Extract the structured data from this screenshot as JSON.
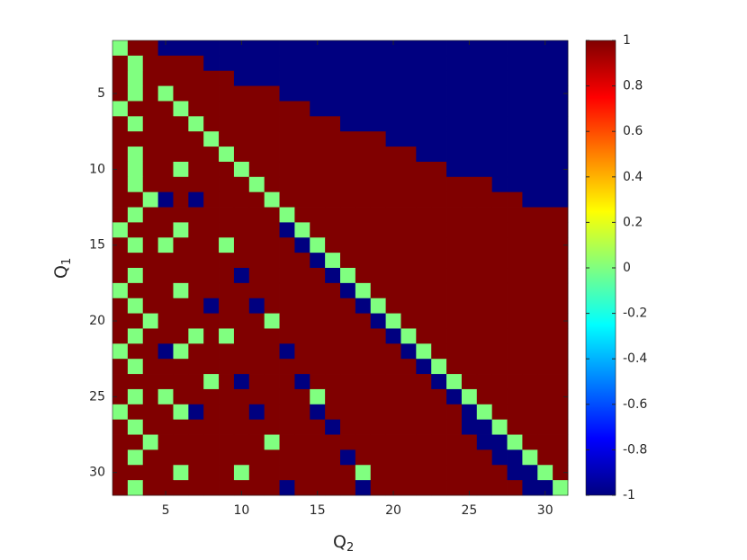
{
  "chart_data": {
    "type": "heatmap",
    "xlabel": [
      "Q",
      "2"
    ],
    "ylabel": [
      "Q",
      "1"
    ],
    "x": [
      2,
      3,
      4,
      5,
      6,
      7,
      8,
      9,
      10,
      11,
      12,
      13,
      14,
      15,
      16,
      17,
      18,
      19,
      20,
      21,
      22,
      23,
      24,
      25,
      26,
      27,
      28,
      29,
      30,
      31
    ],
    "y": [
      2,
      3,
      4,
      5,
      6,
      7,
      8,
      9,
      10,
      11,
      12,
      13,
      14,
      15,
      16,
      17,
      18,
      19,
      20,
      21,
      22,
      23,
      24,
      25,
      26,
      27,
      28,
      29,
      30,
      31
    ],
    "values": [
      [
        0,
        1,
        1,
        -1,
        -1,
        -1,
        -1,
        -1,
        -1,
        -1,
        -1,
        -1,
        -1,
        -1,
        -1,
        -1,
        -1,
        -1,
        -1,
        -1,
        -1,
        -1,
        -1,
        -1,
        -1,
        -1,
        -1,
        -1,
        -1,
        -1
      ],
      [
        1,
        0,
        1,
        1,
        1,
        1,
        -1,
        -1,
        -1,
        -1,
        -1,
        -1,
        -1,
        -1,
        -1,
        -1,
        -1,
        -1,
        -1,
        -1,
        -1,
        -1,
        -1,
        -1,
        -1,
        -1,
        -1,
        -1,
        -1,
        -1
      ],
      [
        1,
        0,
        1,
        1,
        1,
        1,
        1,
        1,
        -1,
        -1,
        -1,
        -1,
        -1,
        -1,
        -1,
        -1,
        -1,
        -1,
        -1,
        -1,
        -1,
        -1,
        -1,
        -1,
        -1,
        -1,
        -1,
        -1,
        -1,
        -1
      ],
      [
        1,
        0,
        1,
        0,
        1,
        1,
        1,
        1,
        1,
        1,
        1,
        -1,
        -1,
        -1,
        -1,
        -1,
        -1,
        -1,
        -1,
        -1,
        -1,
        -1,
        -1,
        -1,
        -1,
        -1,
        -1,
        -1,
        -1,
        -1
      ],
      [
        0,
        1,
        1,
        1,
        0,
        1,
        1,
        1,
        1,
        1,
        1,
        1,
        1,
        -1,
        -1,
        -1,
        -1,
        -1,
        -1,
        -1,
        -1,
        -1,
        -1,
        -1,
        -1,
        -1,
        -1,
        -1,
        -1,
        -1
      ],
      [
        1,
        0,
        1,
        1,
        1,
        0,
        1,
        1,
        1,
        1,
        1,
        1,
        1,
        1,
        1,
        -1,
        -1,
        -1,
        -1,
        -1,
        -1,
        -1,
        -1,
        -1,
        -1,
        -1,
        -1,
        -1,
        -1,
        -1
      ],
      [
        1,
        1,
        1,
        1,
        1,
        1,
        0,
        1,
        1,
        1,
        1,
        1,
        1,
        1,
        1,
        1,
        1,
        1,
        -1,
        -1,
        -1,
        -1,
        -1,
        -1,
        -1,
        -1,
        -1,
        -1,
        -1,
        -1
      ],
      [
        1,
        0,
        1,
        1,
        1,
        1,
        1,
        0,
        1,
        1,
        1,
        1,
        1,
        1,
        1,
        1,
        1,
        1,
        1,
        1,
        -1,
        -1,
        -1,
        -1,
        -1,
        -1,
        -1,
        -1,
        -1,
        -1
      ],
      [
        1,
        0,
        1,
        1,
        0,
        1,
        1,
        1,
        0,
        1,
        1,
        1,
        1,
        1,
        1,
        1,
        1,
        1,
        1,
        1,
        1,
        1,
        -1,
        -1,
        -1,
        -1,
        -1,
        -1,
        -1,
        -1
      ],
      [
        1,
        0,
        1,
        1,
        1,
        1,
        1,
        1,
        1,
        0,
        1,
        1,
        1,
        1,
        1,
        1,
        1,
        1,
        1,
        1,
        1,
        1,
        1,
        1,
        1,
        -1,
        -1,
        -1,
        -1,
        -1
      ],
      [
        1,
        1,
        0,
        -1,
        1,
        -1,
        1,
        1,
        1,
        1,
        0,
        1,
        1,
        1,
        1,
        1,
        1,
        1,
        1,
        1,
        1,
        1,
        1,
        1,
        1,
        1,
        1,
        -1,
        -1,
        -1
      ],
      [
        1,
        0,
        1,
        1,
        1,
        1,
        1,
        1,
        1,
        1,
        1,
        0,
        1,
        1,
        1,
        1,
        1,
        1,
        1,
        1,
        1,
        1,
        1,
        1,
        1,
        1,
        1,
        1,
        1,
        1
      ],
      [
        0,
        1,
        1,
        1,
        0,
        1,
        1,
        1,
        1,
        1,
        1,
        -1,
        0,
        1,
        1,
        1,
        1,
        1,
        1,
        1,
        1,
        1,
        1,
        1,
        1,
        1,
        1,
        1,
        1,
        1
      ],
      [
        1,
        0,
        1,
        0,
        1,
        1,
        1,
        0,
        1,
        1,
        1,
        1,
        -1,
        0,
        1,
        1,
        1,
        1,
        1,
        1,
        1,
        1,
        1,
        1,
        1,
        1,
        1,
        1,
        1,
        1
      ],
      [
        1,
        1,
        1,
        1,
        1,
        1,
        1,
        1,
        1,
        1,
        1,
        1,
        1,
        -1,
        0,
        1,
        1,
        1,
        1,
        1,
        1,
        1,
        1,
        1,
        1,
        1,
        1,
        1,
        1,
        1
      ],
      [
        1,
        0,
        1,
        1,
        1,
        1,
        1,
        1,
        -1,
        1,
        1,
        1,
        1,
        1,
        -1,
        0,
        1,
        1,
        1,
        1,
        1,
        1,
        1,
        1,
        1,
        1,
        1,
        1,
        1,
        1
      ],
      [
        0,
        1,
        1,
        1,
        0,
        1,
        1,
        1,
        1,
        1,
        1,
        1,
        1,
        1,
        1,
        -1,
        0,
        1,
        1,
        1,
        1,
        1,
        1,
        1,
        1,
        1,
        1,
        1,
        1,
        1
      ],
      [
        1,
        0,
        1,
        1,
        1,
        1,
        -1,
        1,
        1,
        -1,
        1,
        1,
        1,
        1,
        1,
        1,
        -1,
        0,
        1,
        1,
        1,
        1,
        1,
        1,
        1,
        1,
        1,
        1,
        1,
        1
      ],
      [
        1,
        1,
        0,
        1,
        1,
        1,
        1,
        1,
        1,
        1,
        0,
        1,
        1,
        1,
        1,
        1,
        1,
        -1,
        0,
        1,
        1,
        1,
        1,
        1,
        1,
        1,
        1,
        1,
        1,
        1
      ],
      [
        1,
        0,
        1,
        1,
        1,
        0,
        1,
        0,
        1,
        1,
        1,
        1,
        1,
        1,
        1,
        1,
        1,
        1,
        -1,
        0,
        1,
        1,
        1,
        1,
        1,
        1,
        1,
        1,
        1,
        1
      ],
      [
        0,
        1,
        1,
        -1,
        0,
        1,
        1,
        1,
        1,
        1,
        1,
        -1,
        1,
        1,
        1,
        1,
        1,
        1,
        1,
        -1,
        0,
        1,
        1,
        1,
        1,
        1,
        1,
        1,
        1,
        1
      ],
      [
        1,
        0,
        1,
        1,
        1,
        1,
        1,
        1,
        1,
        1,
        1,
        1,
        1,
        1,
        1,
        1,
        1,
        1,
        1,
        1,
        -1,
        0,
        1,
        1,
        1,
        1,
        1,
        1,
        1,
        1
      ],
      [
        1,
        1,
        1,
        1,
        1,
        1,
        0,
        1,
        -1,
        1,
        1,
        1,
        -1,
        1,
        1,
        1,
        1,
        1,
        1,
        1,
        1,
        -1,
        0,
        1,
        1,
        1,
        1,
        1,
        1,
        1
      ],
      [
        1,
        0,
        1,
        0,
        1,
        1,
        1,
        1,
        1,
        1,
        1,
        1,
        1,
        0,
        1,
        1,
        1,
        1,
        1,
        1,
        1,
        1,
        -1,
        0,
        1,
        1,
        1,
        1,
        1,
        1
      ],
      [
        0,
        1,
        1,
        1,
        0,
        -1,
        1,
        1,
        1,
        -1,
        1,
        1,
        1,
        -1,
        1,
        1,
        1,
        1,
        1,
        1,
        1,
        1,
        1,
        -1,
        0,
        1,
        1,
        1,
        1,
        1
      ],
      [
        1,
        0,
        1,
        1,
        1,
        1,
        1,
        1,
        1,
        1,
        1,
        1,
        1,
        1,
        -1,
        1,
        1,
        1,
        1,
        1,
        1,
        1,
        1,
        -1,
        -1,
        0,
        1,
        1,
        1,
        1
      ],
      [
        1,
        1,
        0,
        1,
        1,
        1,
        1,
        1,
        1,
        1,
        0,
        1,
        1,
        1,
        1,
        1,
        1,
        1,
        1,
        1,
        1,
        1,
        1,
        1,
        -1,
        -1,
        0,
        1,
        1,
        1
      ],
      [
        1,
        0,
        1,
        1,
        1,
        1,
        1,
        1,
        1,
        1,
        1,
        1,
        1,
        1,
        1,
        -1,
        1,
        1,
        1,
        1,
        1,
        1,
        1,
        1,
        1,
        -1,
        -1,
        0,
        1,
        1
      ],
      [
        1,
        1,
        1,
        1,
        0,
        1,
        1,
        1,
        0,
        1,
        1,
        1,
        1,
        1,
        1,
        1,
        0,
        1,
        1,
        1,
        1,
        1,
        1,
        1,
        1,
        1,
        -1,
        -1,
        0,
        1
      ],
      [
        1,
        0,
        1,
        1,
        1,
        1,
        1,
        1,
        1,
        1,
        1,
        -1,
        1,
        1,
        1,
        1,
        -1,
        1,
        1,
        1,
        1,
        1,
        1,
        1,
        1,
        1,
        1,
        -1,
        -1,
        0
      ]
    ],
    "xlim": [
      1.5,
      31.5
    ],
    "ylim": [
      1.5,
      31.5
    ],
    "y_reversed": true,
    "xticks": [
      5,
      10,
      15,
      20,
      25,
      30
    ],
    "yticks": [
      5,
      10,
      15,
      20,
      25,
      30
    ],
    "colormap": "jet",
    "clim": [
      -1,
      1
    ],
    "cticks": [
      -1,
      -0.8,
      -0.6,
      -0.4,
      -0.2,
      0,
      0.2,
      0.4,
      0.6,
      0.8,
      1
    ]
  }
}
